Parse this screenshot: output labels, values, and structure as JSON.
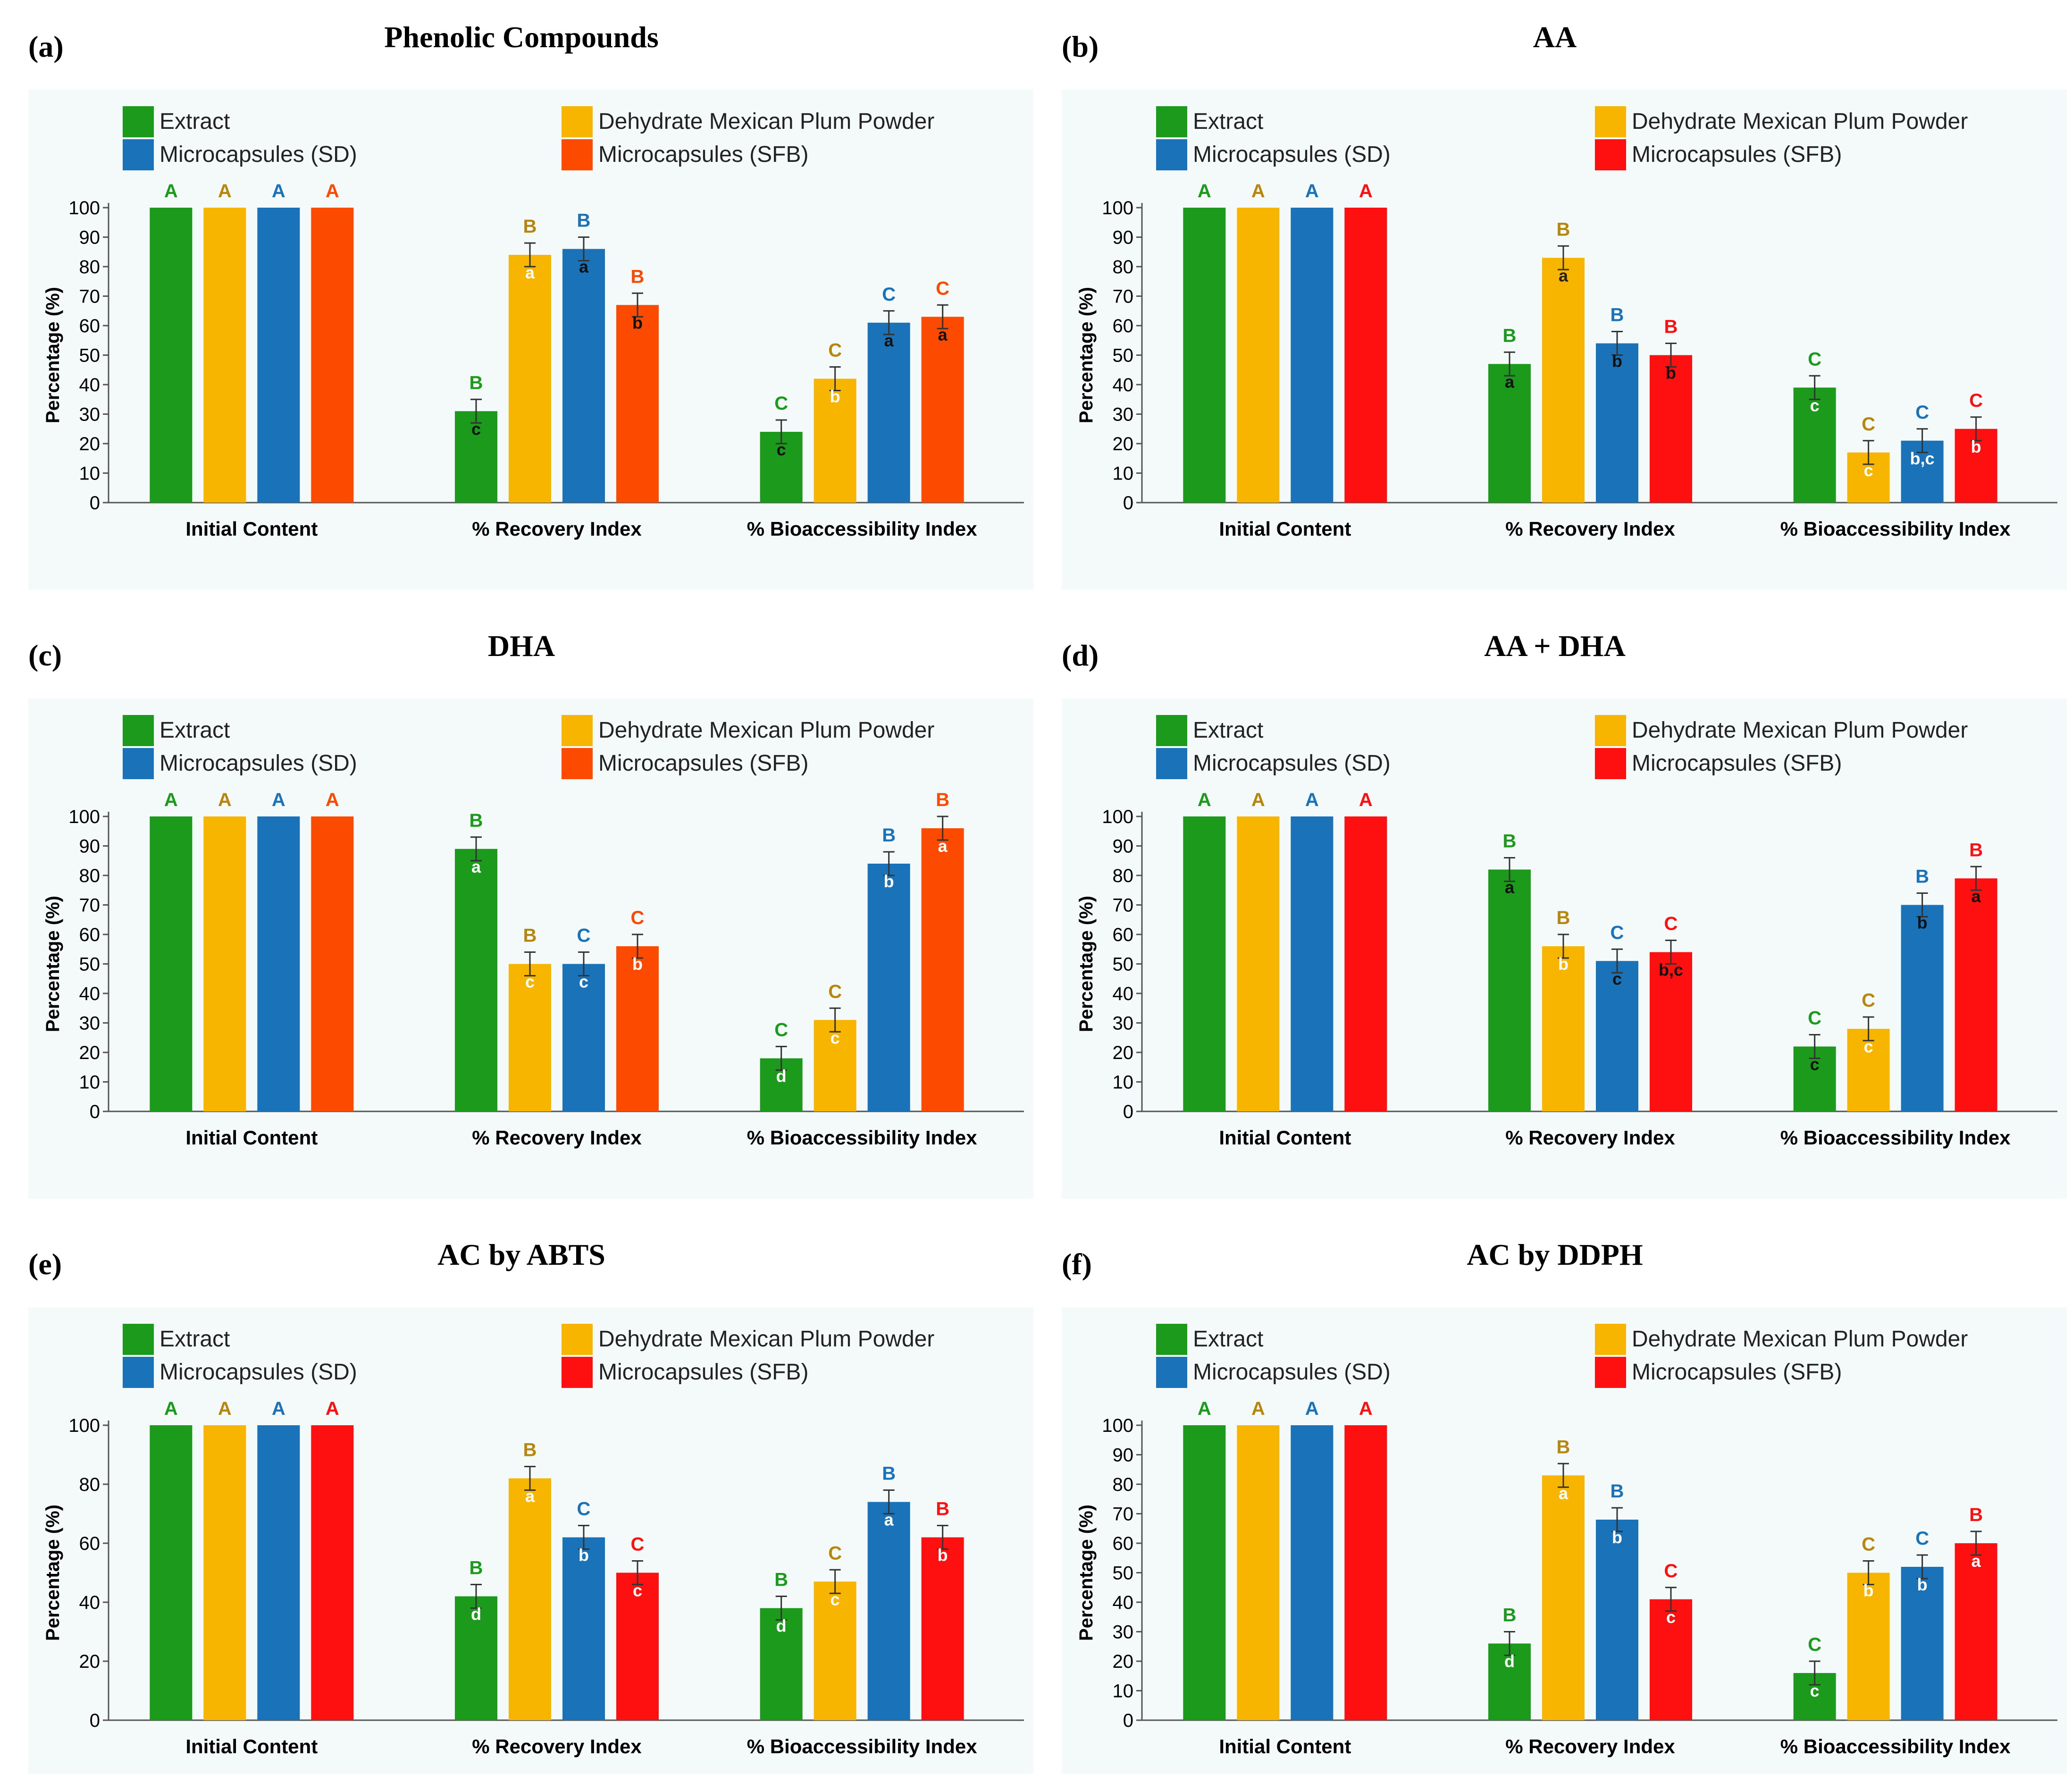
{
  "colors": {
    "panel_bg": "#f3faf9",
    "extract": "#1b9a1b",
    "powder": "#f7b500",
    "sd": "#1a72b8",
    "sfb": "#ff1010",
    "sfb_alt": "#fc4a00",
    "powder_letter": "#b8860b"
  },
  "chart_data": [
    {
      "label": "(a)",
      "title": "Phenolic Compounds",
      "type": "bar",
      "sfb_color": "#fc4a00",
      "ylabel": "Percentage (%)",
      "ylim": [
        0,
        100
      ],
      "yticks": [
        "0",
        "10",
        "20",
        "30",
        "40",
        "50",
        "60",
        "70",
        "80",
        "90",
        "100"
      ],
      "categories": [
        "Initial Content",
        "% Recovery Index",
        "% Bioaccessibility Index"
      ],
      "series": [
        {
          "name": "Extract",
          "values": [
            100,
            31,
            24
          ],
          "upper": [
            "A",
            "B",
            "C"
          ],
          "lower": [
            "",
            "c",
            "c"
          ]
        },
        {
          "name": "Dehydrate Mexican Plum Powder",
          "values": [
            100,
            84,
            42
          ],
          "upper": [
            "A",
            "B",
            "C"
          ],
          "lower": [
            "",
            "a",
            "b"
          ]
        },
        {
          "name": "Microcapsules (SD)",
          "values": [
            100,
            86,
            61
          ],
          "upper": [
            "A",
            "B",
            "C"
          ],
          "lower": [
            "",
            "a",
            "a"
          ]
        },
        {
          "name": "Microcapsules (SFB)",
          "values": [
            100,
            67,
            63
          ],
          "upper": [
            "A",
            "B",
            "C"
          ],
          "lower": [
            "",
            "b",
            "a"
          ]
        }
      ]
    },
    {
      "label": "(b)",
      "title": "AA",
      "type": "bar",
      "sfb_color": "#ff1010",
      "ylabel": "Percentage (%)",
      "ylim": [
        0,
        100
      ],
      "yticks": [
        "0",
        "10",
        "20",
        "30",
        "40",
        "50",
        "60",
        "70",
        "80",
        "90",
        "100"
      ],
      "categories": [
        "Initial Content",
        "% Recovery Index",
        "% Bioaccessibility Index"
      ],
      "series": [
        {
          "name": "Extract",
          "values": [
            100,
            47,
            39
          ],
          "upper": [
            "A",
            "B",
            "C"
          ],
          "lower": [
            "",
            "a",
            "c"
          ]
        },
        {
          "name": "Dehydrate Mexican Plum Powder",
          "values": [
            100,
            83,
            17
          ],
          "upper": [
            "A",
            "B",
            "C"
          ],
          "lower": [
            "",
            "a",
            "c"
          ]
        },
        {
          "name": "Microcapsules (SD)",
          "values": [
            100,
            54,
            21
          ],
          "upper": [
            "A",
            "B",
            "C"
          ],
          "lower": [
            "",
            "b",
            "b,c"
          ]
        },
        {
          "name": "Microcapsules (SFB)",
          "values": [
            100,
            50,
            25
          ],
          "upper": [
            "A",
            "B",
            "C"
          ],
          "lower": [
            "",
            "b",
            "b"
          ]
        }
      ]
    },
    {
      "label": "(c)",
      "title": "DHA",
      "type": "bar",
      "sfb_color": "#fc4a00",
      "ylabel": "Percentage (%)",
      "ylim": [
        0,
        100
      ],
      "yticks": [
        "0",
        "10",
        "20",
        "30",
        "40",
        "50",
        "60",
        "70",
        "80",
        "90",
        "100"
      ],
      "categories": [
        "Initial Content",
        "% Recovery Index",
        "% Bioaccessibility Index"
      ],
      "series": [
        {
          "name": "Extract",
          "values": [
            100,
            89,
            18
          ],
          "upper": [
            "A",
            "B",
            "C"
          ],
          "lower": [
            "",
            "a",
            "d"
          ]
        },
        {
          "name": "Dehydrate Mexican Plum Powder",
          "values": [
            100,
            50,
            31
          ],
          "upper": [
            "A",
            "B",
            "C"
          ],
          "lower": [
            "",
            "c",
            "c"
          ]
        },
        {
          "name": "Microcapsules (SD)",
          "values": [
            100,
            50,
            84
          ],
          "upper": [
            "A",
            "C",
            "B"
          ],
          "lower": [
            "",
            "c",
            "b"
          ]
        },
        {
          "name": "Microcapsules (SFB)",
          "values": [
            100,
            56,
            96
          ],
          "upper": [
            "A",
            "C",
            "B"
          ],
          "lower": [
            "",
            "b",
            "a"
          ]
        }
      ]
    },
    {
      "label": "(d)",
      "title": "AA + DHA",
      "type": "bar",
      "sfb_color": "#ff1010",
      "ylabel": "Percentage (%)",
      "ylim": [
        0,
        100
      ],
      "yticks": [
        "0",
        "10",
        "20",
        "30",
        "40",
        "50",
        "60",
        "70",
        "80",
        "90",
        "100"
      ],
      "categories": [
        "Initial Content",
        "% Recovery Index",
        "% Bioaccessibility Index"
      ],
      "series": [
        {
          "name": "Extract",
          "values": [
            100,
            82,
            22
          ],
          "upper": [
            "A",
            "B",
            "C"
          ],
          "lower": [
            "",
            "a",
            "c"
          ]
        },
        {
          "name": "Dehydrate Mexican Plum Powder",
          "values": [
            100,
            56,
            28
          ],
          "upper": [
            "A",
            "B",
            "C"
          ],
          "lower": [
            "",
            "b",
            "c"
          ]
        },
        {
          "name": "Microcapsules (SD)",
          "values": [
            100,
            51,
            70
          ],
          "upper": [
            "A",
            "C",
            "B"
          ],
          "lower": [
            "",
            "c",
            "b"
          ]
        },
        {
          "name": "Microcapsules (SFB)",
          "values": [
            100,
            54,
            79
          ],
          "upper": [
            "A",
            "C",
            "B"
          ],
          "lower": [
            "",
            "b,c",
            "a"
          ]
        }
      ]
    },
    {
      "label": "(e)",
      "title": "AC by ABTS",
      "type": "bar",
      "sfb_color": "#ff1010",
      "ylabel": "Percentage (%)",
      "ylim": [
        0,
        100
      ],
      "yticks": [
        "0",
        "20",
        "40",
        "60",
        "80",
        "100"
      ],
      "categories": [
        "Initial Content",
        "% Recovery Index",
        "% Bioaccessibility Index"
      ],
      "series": [
        {
          "name": "Extract",
          "values": [
            100,
            42,
            38
          ],
          "upper": [
            "A",
            "B",
            "B"
          ],
          "lower": [
            "",
            "d",
            "d"
          ]
        },
        {
          "name": "Dehydrate Mexican Plum Powder",
          "values": [
            100,
            82,
            47
          ],
          "upper": [
            "A",
            "B",
            "C"
          ],
          "lower": [
            "",
            "a",
            "c"
          ]
        },
        {
          "name": "Microcapsules (SD)",
          "values": [
            100,
            62,
            74
          ],
          "upper": [
            "A",
            "C",
            "B"
          ],
          "lower": [
            "",
            "b",
            "a"
          ]
        },
        {
          "name": "Microcapsules (SFB)",
          "values": [
            100,
            50,
            62
          ],
          "upper": [
            "A",
            "C",
            "B"
          ],
          "lower": [
            "",
            "c",
            "b"
          ]
        }
      ]
    },
    {
      "label": "(f)",
      "title": "AC by DDPH",
      "type": "bar",
      "sfb_color": "#ff1010",
      "ylabel": "Percentage (%)",
      "ylim": [
        0,
        100
      ],
      "yticks": [
        "0",
        "10",
        "20",
        "30",
        "40",
        "50",
        "60",
        "70",
        "80",
        "90",
        "100"
      ],
      "categories": [
        "Initial Content",
        "% Recovery Index",
        "% Bioaccessibility Index"
      ],
      "series": [
        {
          "name": "Extract",
          "values": [
            100,
            26,
            16
          ],
          "upper": [
            "A",
            "B",
            "C"
          ],
          "lower": [
            "",
            "d",
            "c"
          ]
        },
        {
          "name": "Dehydrate Mexican Plum Powder",
          "values": [
            100,
            83,
            50
          ],
          "upper": [
            "A",
            "B",
            "C"
          ],
          "lower": [
            "",
            "a",
            "b"
          ]
        },
        {
          "name": "Microcapsules (SD)",
          "values": [
            100,
            68,
            52
          ],
          "upper": [
            "A",
            "B",
            "C"
          ],
          "lower": [
            "",
            "b",
            "b"
          ]
        },
        {
          "name": "Microcapsules (SFB)",
          "values": [
            100,
            41,
            60
          ],
          "upper": [
            "A",
            "C",
            "B"
          ],
          "lower": [
            "",
            "c",
            "a"
          ]
        }
      ]
    }
  ]
}
